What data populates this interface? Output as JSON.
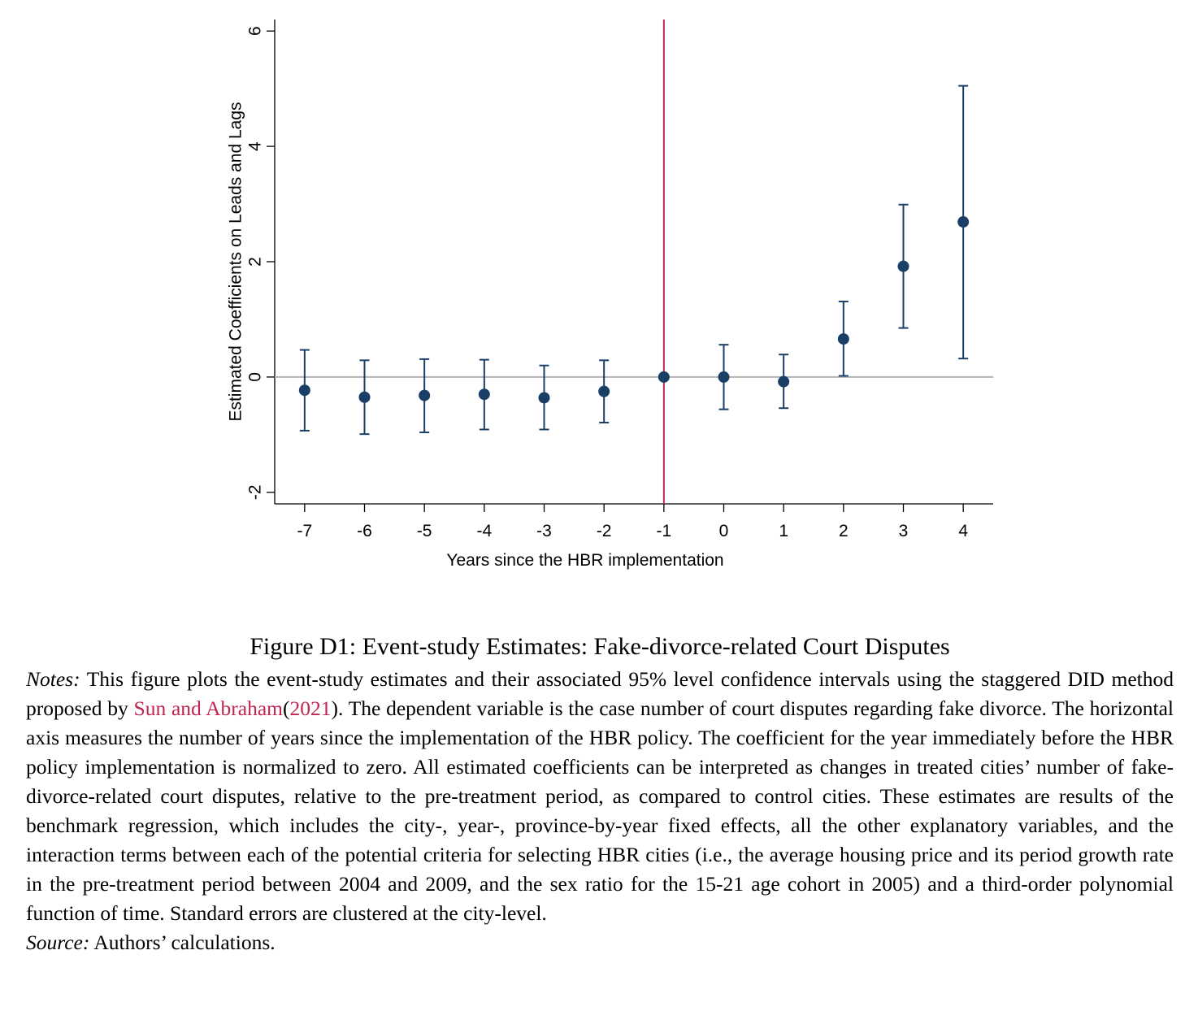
{
  "chart_data": {
    "type": "scatter",
    "subtype": "event-study coefficients with 95% confidence intervals",
    "xlabel": "Years since the HBR implementation",
    "ylabel": "Estimated Coefficients on Leads and Lags",
    "x": [
      -7,
      -6,
      -5,
      -4,
      -3,
      -2,
      -1,
      0,
      1,
      2,
      3,
      4
    ],
    "series": [
      {
        "estimate": [
          -0.23,
          -0.35,
          -0.32,
          -0.3,
          -0.36,
          -0.25,
          0.0,
          0.0,
          -0.08,
          0.66,
          1.92,
          2.69
        ],
        "ci_low": [
          -0.93,
          -0.99,
          -0.96,
          -0.91,
          -0.91,
          -0.79,
          0.0,
          -0.56,
          -0.54,
          0.02,
          0.85,
          0.32
        ],
        "ci_high": [
          0.47,
          0.29,
          0.31,
          0.3,
          0.2,
          0.29,
          0.0,
          0.56,
          0.39,
          1.31,
          2.99,
          5.05
        ]
      }
    ],
    "xticks": [
      -7,
      -6,
      -5,
      -4,
      -3,
      -2,
      -1,
      0,
      1,
      2,
      3,
      4
    ],
    "yticks": [
      -2,
      0,
      2,
      4,
      6
    ],
    "ylim": [
      -2.2,
      6.2
    ],
    "xlim": [
      -7.5,
      4.5
    ],
    "reference_hline": 0,
    "reference_vline": -1,
    "grid": false,
    "colors": {
      "marker": "#1a3f66",
      "vline": "#c0244f",
      "hline": "#b4b4b4",
      "axis": "#000000"
    }
  },
  "caption": {
    "title": "Figure D1: Event-study Estimates: Fake-divorce-related Court Disputes",
    "notes_label": "Notes:",
    "notes_part1": "This figure plots the event-study estimates and their associated 95% level confidence intervals using the staggered DID method proposed by",
    "cite_authors": "Sun and Abraham",
    "cite_open": "(",
    "cite_year": "2021",
    "cite_close": ").",
    "notes_part2": "The dependent variable is the case number of court disputes regarding fake divorce. The horizontal axis measures the number of years since the implementation of the HBR policy. The coefficient for the year immediately before the HBR policy implementation is normalized to zero. All estimated coefficients can be interpreted as changes in treated cities’ number of fake-divorce-related court disputes, relative to the pre-treatment period, as compared to control cities. These estimates are results of the benchmark regression, which includes the city-, year-, province-by-year fixed effects, all the other explanatory variables, and the interaction terms between each of the potential criteria for selecting HBR cities (i.e., the average housing price and its period growth rate in the pre-treatment period between 2004 and 2009, and the sex ratio for the 15-21 age cohort in 2005) and a third-order polynomial function of time. Standard errors are clustered at the city-level.",
    "source_label": "Source:",
    "source_text": "Authors’ calculations."
  }
}
